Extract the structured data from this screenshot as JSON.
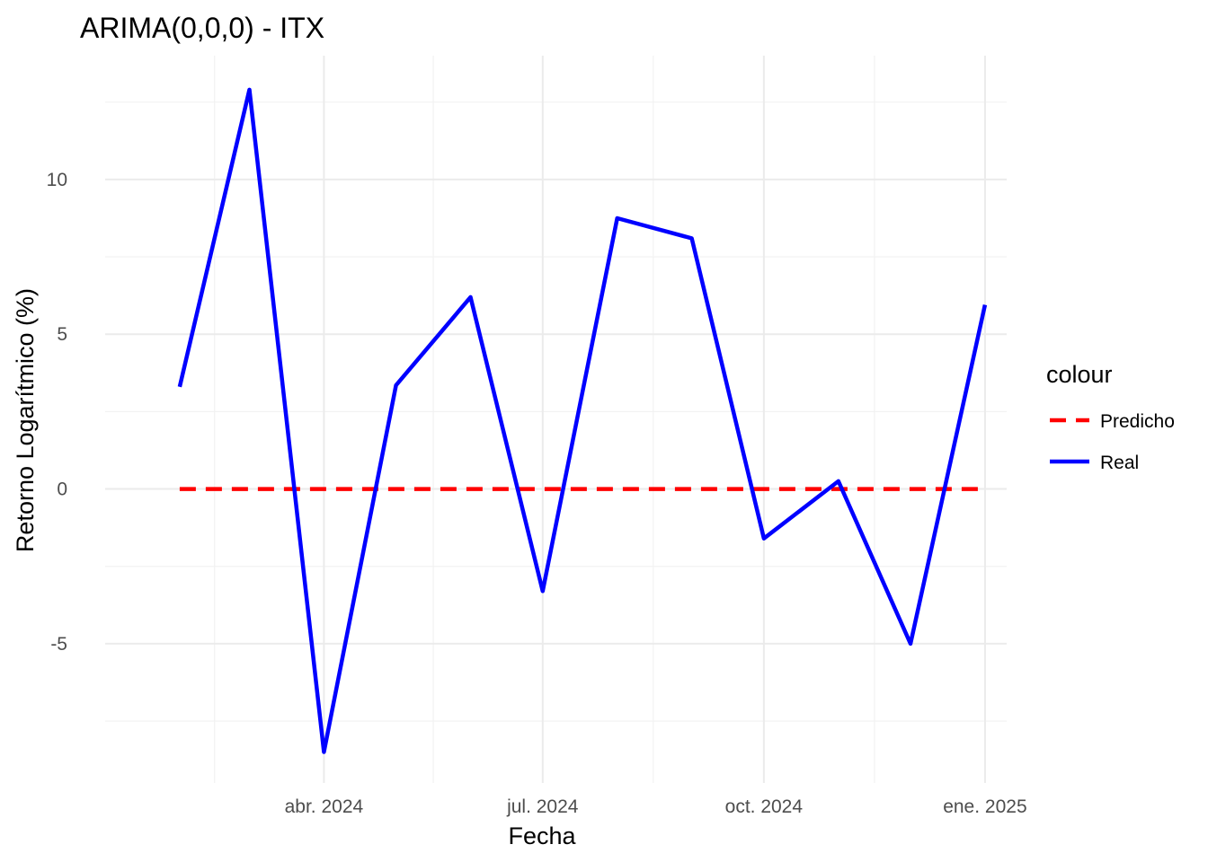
{
  "chart_data": {
    "type": "line",
    "title": "ARIMA(0,0,0) - ITX",
    "xlabel": "Fecha",
    "ylabel": "Retorno Logarítmico (%)",
    "x": [
      "2024-02-01",
      "2024-03-01",
      "2024-04-01",
      "2024-05-01",
      "2024-06-01",
      "2024-07-01",
      "2024-08-01",
      "2024-09-01",
      "2024-10-01",
      "2024-11-01",
      "2024-12-01",
      "2025-01-01"
    ],
    "x_ticks": [
      {
        "label": "abr. 2024",
        "date": "2024-04-01"
      },
      {
        "label": "jul. 2024",
        "date": "2024-07-01"
      },
      {
        "label": "oct. 2024",
        "date": "2024-10-01"
      },
      {
        "label": "ene. 2025",
        "date": "2025-01-01"
      }
    ],
    "y_ticks": [
      -5,
      0,
      5,
      10
    ],
    "ylim": [
      -9.5,
      14
    ],
    "xlim": [
      "2024-01-01",
      "2025-01-10"
    ],
    "series": [
      {
        "name": "Real",
        "color": "#0000ff",
        "dash": "solid",
        "values": [
          3.3,
          12.9,
          -8.5,
          3.35,
          6.2,
          -3.3,
          8.75,
          8.1,
          -1.6,
          0.25,
          -5.0,
          5.95
        ]
      },
      {
        "name": "Predicho",
        "color": "#ff0000",
        "dash": "dashed",
        "values": [
          0,
          0,
          0,
          0,
          0,
          0,
          0,
          0,
          0,
          0,
          0,
          0
        ]
      }
    ],
    "legend": {
      "title": "colour",
      "position": "right",
      "entries": [
        {
          "label": "Predicho",
          "color": "#ff0000",
          "dash": "dashed"
        },
        {
          "label": "Real",
          "color": "#0000ff",
          "dash": "solid"
        }
      ]
    },
    "grid": true
  }
}
